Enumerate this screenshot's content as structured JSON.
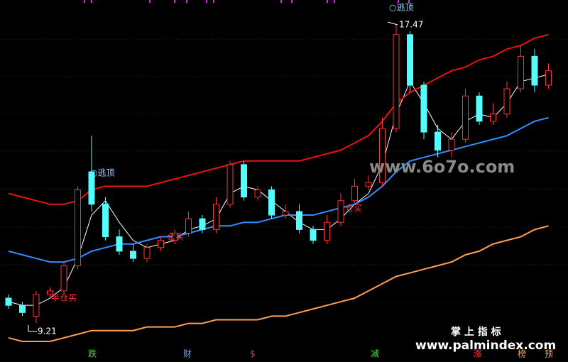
{
  "chart_data": {
    "type": "candlestick",
    "categories": [
      null,
      null,
      null,
      null,
      null,
      null,
      null,
      null,
      null,
      null,
      null,
      null,
      null,
      null,
      null,
      null,
      null,
      null,
      null,
      null,
      null,
      null,
      null,
      null,
      null,
      null,
      null,
      null,
      null,
      null,
      null,
      null,
      null,
      null,
      null,
      null,
      null,
      null,
      null,
      null
    ],
    "open": [
      9.9,
      9.7,
      9.4,
      10.0,
      10.1,
      10.8,
      13.4,
      12.5,
      11.6,
      11.2,
      11.0,
      11.3,
      11.5,
      11.7,
      12.1,
      11.8,
      12.5,
      13.6,
      12.7,
      12.9,
      12.2,
      12.3,
      11.8,
      11.5,
      12.0,
      12.6,
      13.0,
      13.1,
      14.6,
      17.2,
      15.8,
      14.5,
      14.0,
      14.3,
      15.5,
      14.8,
      15.0,
      15.7,
      16.6,
      15.8
    ],
    "high": [
      10.0,
      9.8,
      10.1,
      10.2,
      10.9,
      13.0,
      14.4,
      12.7,
      11.8,
      11.4,
      11.4,
      11.6,
      11.8,
      12.3,
      12.2,
      12.7,
      13.7,
      13.7,
      13.0,
      13.0,
      12.5,
      12.5,
      11.9,
      12.2,
      12.8,
      13.2,
      13.3,
      14.9,
      17.47,
      17.3,
      15.9,
      14.7,
      14.5,
      15.7,
      15.6,
      15.3,
      15.9,
      16.9,
      16.8,
      16.4
    ],
    "low": [
      9.6,
      9.4,
      9.21,
      9.9,
      10.0,
      10.7,
      12.3,
      11.5,
      11.1,
      10.9,
      10.9,
      11.2,
      11.4,
      11.6,
      11.7,
      11.7,
      12.4,
      12.6,
      12.6,
      12.1,
      12.1,
      11.7,
      11.4,
      11.4,
      11.9,
      12.5,
      12.9,
      13.0,
      14.5,
      15.6,
      14.3,
      13.8,
      13.8,
      14.2,
      14.7,
      14.7,
      14.9,
      15.6,
      15.6,
      15.7
    ],
    "close": [
      9.7,
      9.5,
      10.0,
      10.1,
      10.8,
      12.9,
      12.5,
      11.6,
      11.2,
      11.0,
      11.3,
      11.5,
      11.7,
      12.1,
      11.8,
      12.5,
      13.6,
      12.7,
      12.9,
      12.2,
      12.3,
      11.8,
      11.5,
      12.0,
      12.6,
      13.0,
      13.1,
      14.6,
      17.2,
      15.8,
      14.5,
      14.0,
      14.3,
      15.5,
      14.8,
      15.0,
      15.7,
      16.6,
      15.8,
      16.2
    ],
    "up_color": "#ff3232",
    "down_color": "#54fcfc",
    "lines": [
      {
        "color": "#ffffff",
        "values": [
          9.8,
          9.7,
          9.7,
          9.9,
          10.2,
          11.0,
          12.2,
          12.6,
          12.0,
          11.5,
          11.3,
          11.4,
          11.5,
          11.8,
          11.9,
          12.1,
          12.8,
          13.0,
          12.9,
          12.6,
          12.3,
          12.0,
          11.8,
          11.8,
          12.1,
          12.5,
          12.8,
          13.6,
          15.0,
          15.9,
          15.3,
          14.6,
          14.3,
          14.8,
          15.0,
          14.9,
          15.3,
          15.9,
          16.0,
          16.1
        ]
      },
      {
        "color": "#2f8fff",
        "values": [
          11.2,
          11.1,
          11.0,
          10.9,
          10.9,
          11.0,
          11.2,
          11.3,
          11.4,
          11.4,
          11.5,
          11.6,
          11.6,
          11.7,
          11.8,
          11.9,
          11.9,
          12.0,
          12.0,
          12.1,
          12.2,
          12.2,
          12.2,
          12.3,
          12.4,
          12.5,
          12.7,
          13.0,
          13.4,
          13.7,
          13.8,
          13.9,
          14.0,
          14.1,
          14.2,
          14.3,
          14.4,
          14.6,
          14.8,
          14.9
        ]
      },
      {
        "color": "#ee1111",
        "values": [
          12.8,
          12.7,
          12.6,
          12.5,
          12.5,
          12.6,
          12.9,
          13.0,
          13.0,
          13.0,
          13.0,
          13.1,
          13.2,
          13.3,
          13.4,
          13.5,
          13.6,
          13.7,
          13.7,
          13.7,
          13.7,
          13.7,
          13.8,
          13.9,
          14.0,
          14.2,
          14.4,
          14.8,
          15.3,
          15.6,
          15.8,
          16.0,
          16.2,
          16.3,
          16.5,
          16.6,
          16.8,
          16.9,
          17.1,
          17.2
        ]
      },
      {
        "color": "#ff9f50",
        "values": [
          8.8,
          8.7,
          8.7,
          8.7,
          8.8,
          8.9,
          9.0,
          9.0,
          9.0,
          9.0,
          9.1,
          9.1,
          9.1,
          9.2,
          9.2,
          9.3,
          9.3,
          9.3,
          9.3,
          9.4,
          9.4,
          9.5,
          9.6,
          9.7,
          9.8,
          9.9,
          10.1,
          10.3,
          10.5,
          10.6,
          10.7,
          10.8,
          10.9,
          11.1,
          11.2,
          11.4,
          11.5,
          11.6,
          11.8,
          11.9
        ]
      }
    ],
    "ylim": [
      8.13,
      18.16
    ],
    "annotations": [
      "○逃顶",
      "○逃顶",
      "17.47",
      "9.21",
      "半仓买",
      "仓买",
      "仓买"
    ],
    "watermarks": [
      "www.6o7o.com",
      "掌 上 指 标",
      "www.palmindex.com"
    ],
    "markers": [
      "跌",
      "财",
      "$",
      "减",
      "涨",
      "榜",
      "预"
    ]
  }
}
